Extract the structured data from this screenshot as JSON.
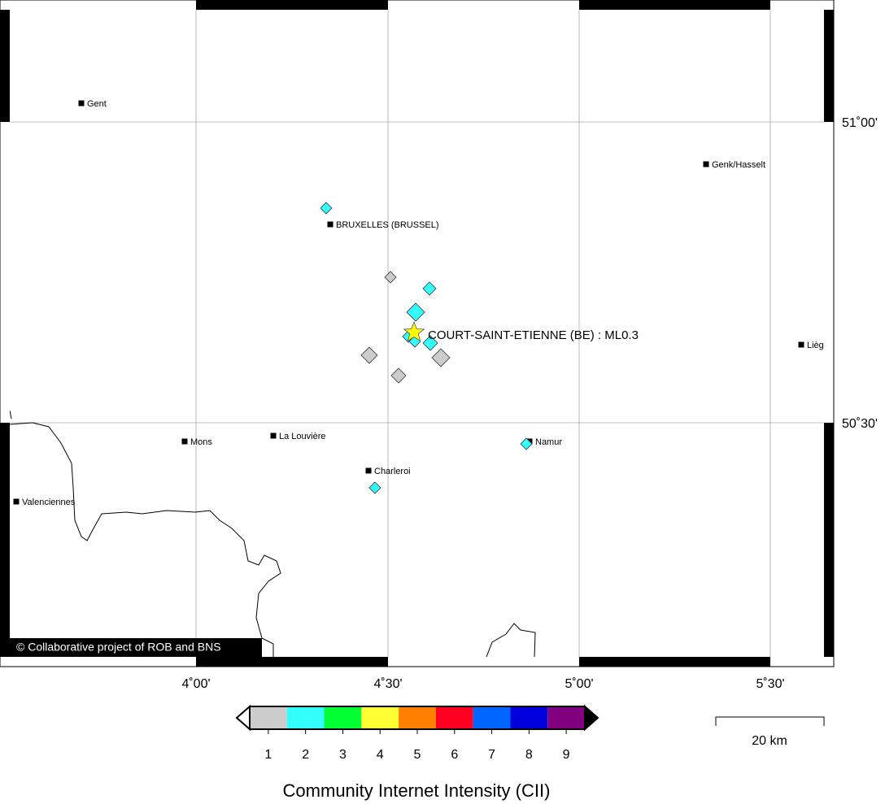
{
  "map": {
    "cities": [
      {
        "label": "Gent"
      },
      {
        "label": "Genk/Hasselt"
      },
      {
        "label": "BRUXELLES (BRUSSEL)"
      },
      {
        "label": "Liège"
      },
      {
        "label": "Mons"
      },
      {
        "label": "La Louvière"
      },
      {
        "label": "Namur"
      },
      {
        "label": "Charleroi"
      },
      {
        "label": "Valenciennes"
      }
    ],
    "epicenter": {
      "label": "COURT-SAINT-ETIENNE (BE) : ML0.3",
      "color": "#ffff00"
    },
    "reports": [
      {
        "intensity": 2
      },
      {
        "intensity": 1
      },
      {
        "intensity": 2
      },
      {
        "intensity": 2
      },
      {
        "intensity": 2
      },
      {
        "intensity": 2
      },
      {
        "intensity": 2
      },
      {
        "intensity": 1
      },
      {
        "intensity": 1
      },
      {
        "intensity": 1
      },
      {
        "intensity": 2
      },
      {
        "intensity": 2
      }
    ],
    "lon_ticks": [
      "4˚00'",
      "4˚30'",
      "5˚00'",
      "5˚30'"
    ],
    "lat_ticks": [
      "51˚00'",
      "50˚30'"
    ],
    "credit": "© Collaborative project of ROB and BNS",
    "scale_bar": "20 km"
  },
  "legend": {
    "title": "Community Internet Intensity (CII)",
    "classes": [
      {
        "label": "1",
        "color": "#cccccc"
      },
      {
        "label": "2",
        "color": "#33ffff"
      },
      {
        "label": "3",
        "color": "#00ff33"
      },
      {
        "label": "4",
        "color": "#ffff33"
      },
      {
        "label": "5",
        "color": "#ff8000"
      },
      {
        "label": "6",
        "color": "#ff0022"
      },
      {
        "label": "7",
        "color": "#0066ff"
      },
      {
        "label": "8",
        "color": "#0000dd"
      },
      {
        "label": "9",
        "color": "#800080"
      }
    ]
  }
}
